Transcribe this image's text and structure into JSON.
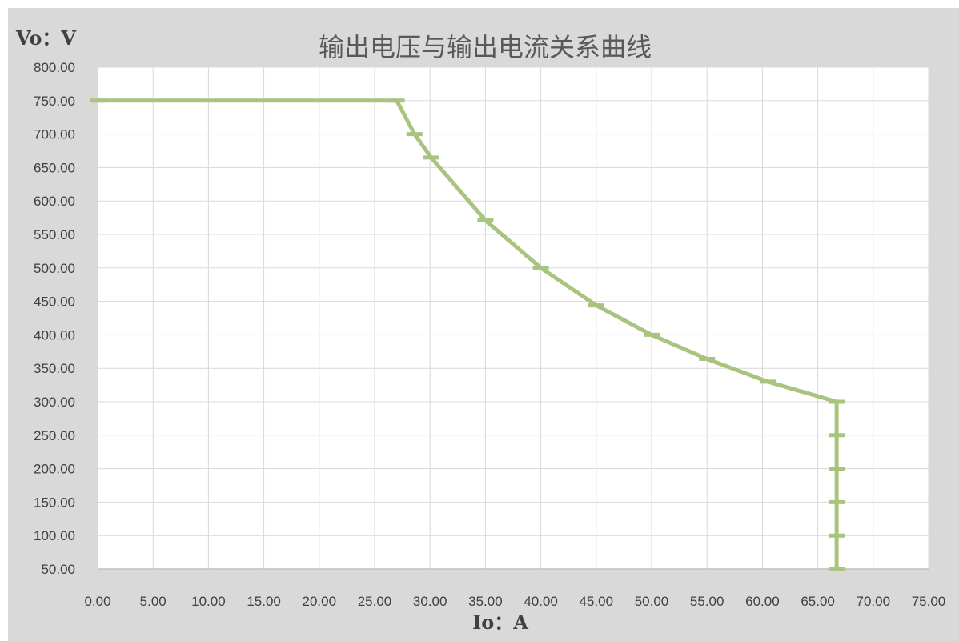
{
  "chart_data": {
    "type": "line",
    "title": "输出电压与输出电流关系曲线",
    "ylabel": "Vo：V",
    "xlabel": "Io：A",
    "xlim": [
      0,
      75
    ],
    "ylim": [
      50,
      800
    ],
    "x_ticks": [
      "0.00",
      "5.00",
      "10.00",
      "15.00",
      "20.00",
      "25.00",
      "30.00",
      "35.00",
      "40.00",
      "45.00",
      "50.00",
      "55.00",
      "60.00",
      "65.00",
      "70.00",
      "75.00"
    ],
    "y_ticks": [
      "50.00",
      "100.00",
      "150.00",
      "200.00",
      "250.00",
      "300.00",
      "350.00",
      "400.00",
      "450.00",
      "500.00",
      "550.00",
      "600.00",
      "650.00",
      "700.00",
      "750.00",
      "800.00"
    ],
    "grid": true,
    "series_color": "#a9c47f",
    "series": [
      {
        "x": [
          0,
          27,
          28.6,
          30.1,
          35,
          40,
          45,
          50,
          55,
          60.5,
          66.7,
          66.7,
          66.7,
          66.7,
          66.7,
          66.7
        ],
        "y": [
          750,
          750,
          700,
          665,
          571,
          500,
          444,
          400,
          364,
          330,
          300,
          250,
          200,
          150,
          100,
          50
        ]
      }
    ]
  }
}
